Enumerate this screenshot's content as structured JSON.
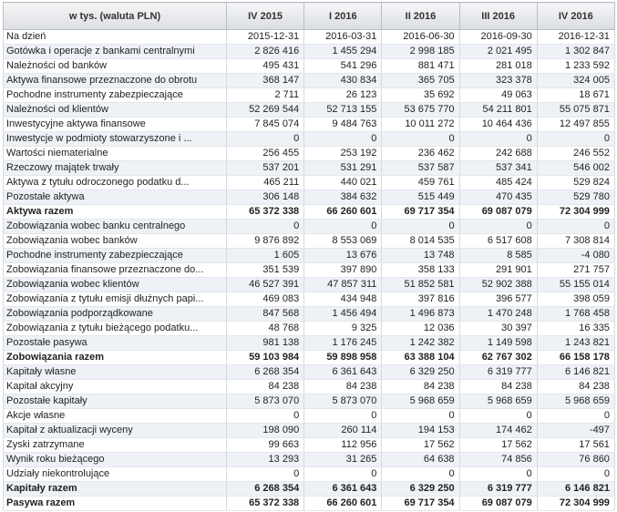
{
  "header": {
    "first": "w tys. (waluta PLN)",
    "periods": [
      "IV 2015",
      "I 2016",
      "II 2016",
      "III 2016",
      "IV 2016"
    ]
  },
  "rows": [
    {
      "label": "Na dzień",
      "values": [
        "2015-12-31",
        "2016-03-31",
        "2016-06-30",
        "2016-09-30",
        "2016-12-31"
      ],
      "bold": false
    },
    {
      "label": "Gotówka i operacje z bankami centralnymi",
      "values": [
        "2 826 416",
        "1 455 294",
        "2 998 185",
        "2 021 495",
        "1 302 847"
      ],
      "bold": false
    },
    {
      "label": "Należności od banków",
      "values": [
        "495 431",
        "541 296",
        "881 471",
        "281 018",
        "1 233 592"
      ],
      "bold": false
    },
    {
      "label": "Aktywa finansowe przeznaczone do obrotu",
      "values": [
        "368 147",
        "430 834",
        "365 705",
        "323 378",
        "324 005"
      ],
      "bold": false
    },
    {
      "label": "Pochodne instrumenty zabezpieczające",
      "values": [
        "2 711",
        "26 123",
        "35 692",
        "49 063",
        "18 671"
      ],
      "bold": false
    },
    {
      "label": "Należności od klientów",
      "values": [
        "52 269 544",
        "52 713 155",
        "53 675 770",
        "54 211 801",
        "55 075 871"
      ],
      "bold": false
    },
    {
      "label": "Inwestycyjne aktywa finansowe",
      "values": [
        "7 845 074",
        "9 484 763",
        "10 011 272",
        "10 464 436",
        "12 497 855"
      ],
      "bold": false
    },
    {
      "label": "Inwestycje w podmioty stowarzyszone i ...",
      "values": [
        "0",
        "0",
        "0",
        "0",
        "0"
      ],
      "bold": false
    },
    {
      "label": "Wartości niematerialne",
      "values": [
        "256 455",
        "253 192",
        "236 462",
        "242 688",
        "246 552"
      ],
      "bold": false
    },
    {
      "label": "Rzeczowy majątek trwały",
      "values": [
        "537 201",
        "531 291",
        "537 587",
        "537 341",
        "546 002"
      ],
      "bold": false
    },
    {
      "label": "Aktywa z tytułu odroczonego podatku d...",
      "values": [
        "465 211",
        "440 021",
        "459 761",
        "485 424",
        "529 824"
      ],
      "bold": false
    },
    {
      "label": "Pozostałe aktywa",
      "values": [
        "306 148",
        "384 632",
        "515 449",
        "470 435",
        "529 780"
      ],
      "bold": false
    },
    {
      "label": "Aktywa razem",
      "values": [
        "65 372 338",
        "66 260 601",
        "69 717 354",
        "69 087 079",
        "72 304 999"
      ],
      "bold": true
    },
    {
      "label": "Zobowiązania wobec banku centralnego",
      "values": [
        "0",
        "0",
        "0",
        "0",
        "0"
      ],
      "bold": false
    },
    {
      "label": "Zobowiązania wobec banków",
      "values": [
        "9 876 892",
        "8 553 069",
        "8 014 535",
        "6 517 608",
        "7 308 814"
      ],
      "bold": false
    },
    {
      "label": "Pochodne instrumenty zabezpieczające",
      "values": [
        "1 605",
        "13 676",
        "13 748",
        "8 585",
        "-4 080"
      ],
      "bold": false
    },
    {
      "label": "Zobowiązania finansowe przeznaczone do...",
      "values": [
        "351 539",
        "397 890",
        "358 133",
        "291 901",
        "271 757"
      ],
      "bold": false
    },
    {
      "label": "Zobowiązania wobec klientów",
      "values": [
        "46 527 391",
        "47 857 311",
        "51 852 581",
        "52 902 388",
        "55 155 014"
      ],
      "bold": false
    },
    {
      "label": "Zobowiązania z tytułu emisji dłużnych papi...",
      "values": [
        "469 083",
        "434 948",
        "397 816",
        "396 577",
        "398 059"
      ],
      "bold": false
    },
    {
      "label": "Zobowiązania podporządkowane",
      "values": [
        "847 568",
        "1 456 494",
        "1 496 873",
        "1 470 248",
        "1 768 458"
      ],
      "bold": false
    },
    {
      "label": "Zobowiązania z tytułu bieżącego podatku...",
      "values": [
        "48 768",
        "9 325",
        "12 036",
        "30 397",
        "16 335"
      ],
      "bold": false
    },
    {
      "label": "Pozostałe pasywa",
      "values": [
        "981 138",
        "1 176 245",
        "1 242 382",
        "1 149 598",
        "1 243 821"
      ],
      "bold": false
    },
    {
      "label": "Zobowiązania razem",
      "values": [
        "59 103 984",
        "59 898 958",
        "63 388 104",
        "62 767 302",
        "66 158 178"
      ],
      "bold": true
    },
    {
      "label": "Kapitały własne",
      "values": [
        "6 268 354",
        "6 361 643",
        "6 329 250",
        "6 319 777",
        "6 146 821"
      ],
      "bold": false
    },
    {
      "label": "Kapitał akcyjny",
      "values": [
        "84 238",
        "84 238",
        "84 238",
        "84 238",
        "84 238"
      ],
      "bold": false
    },
    {
      "label": "Pozostałe kapitały",
      "values": [
        "5 873 070",
        "5 873 070",
        "5 968 659",
        "5 968 659",
        "5 968 659"
      ],
      "bold": false
    },
    {
      "label": "Akcje własne",
      "values": [
        "0",
        "0",
        "0",
        "0",
        "0"
      ],
      "bold": false
    },
    {
      "label": "Kapitał z aktualizacji wyceny",
      "values": [
        "198 090",
        "260 114",
        "194 153",
        "174 462",
        "-497"
      ],
      "bold": false
    },
    {
      "label": "Zyski zatrzymane",
      "values": [
        "99 663",
        "112 956",
        "17 562",
        "17 562",
        "17 561"
      ],
      "bold": false
    },
    {
      "label": "Wynik roku bieżącego",
      "values": [
        "13 293",
        "31 265",
        "64 638",
        "74 856",
        "76 860"
      ],
      "bold": false
    },
    {
      "label": "Udziały niekontrolujące",
      "values": [
        "0",
        "0",
        "0",
        "0",
        "0"
      ],
      "bold": false
    },
    {
      "label": "Kapitały razem",
      "values": [
        "6 268 354",
        "6 361 643",
        "6 329 250",
        "6 319 777",
        "6 146 821"
      ],
      "bold": true
    },
    {
      "label": "Pasywa razem",
      "values": [
        "65 372 338",
        "66 260 601",
        "69 717 354",
        "69 087 079",
        "72 304 999"
      ],
      "bold": true
    }
  ]
}
